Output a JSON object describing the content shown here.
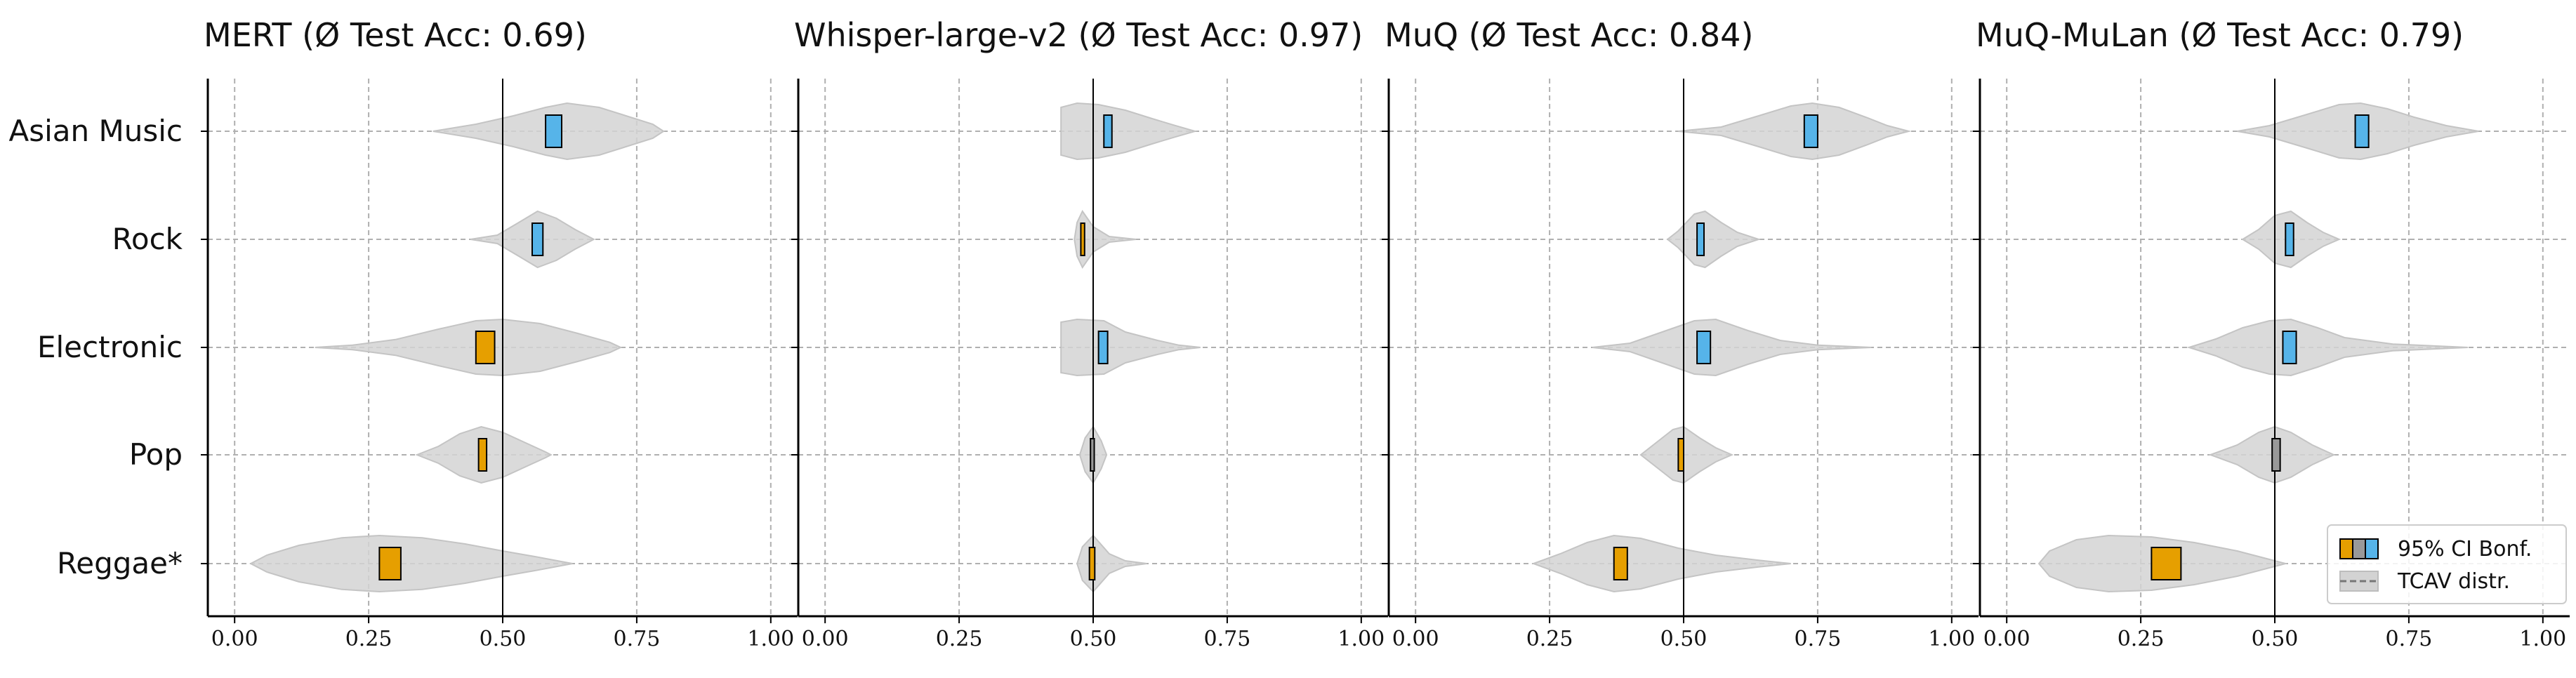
{
  "colors": {
    "negative": "#E69F00",
    "neutral": "#999999",
    "positive": "#56B4E9",
    "violin": "#d3d3d3",
    "grid": "#b0b0b0",
    "axis": "#000000"
  },
  "chart_data": {
    "type": "violin",
    "categories": [
      "Asian Music",
      "Rock",
      "Electronic",
      "Pop",
      "Reggae*"
    ],
    "xlim": [
      -0.05,
      1.05
    ],
    "xticks": [
      "0.00",
      "0.25",
      "0.50",
      "0.75",
      "1.00"
    ],
    "xtick_values": [
      0,
      0.25,
      0.5,
      0.75,
      1.0
    ],
    "reference_line": 0.5,
    "grid": true,
    "legend": {
      "placement": "bottom-right",
      "entries": [
        "95% CI Bonf.",
        "TCAV distr."
      ]
    },
    "panels": [
      {
        "title": "MERT (Ø Test Acc: 0.69)",
        "rows": [
          {
            "category": "Asian Music",
            "ci": [
              0.58,
              0.61
            ],
            "color": "positive",
            "violin": [
              [
                0.37,
                0.0
              ],
              [
                0.45,
                0.25
              ],
              [
                0.52,
                0.55
              ],
              [
                0.58,
                0.85
              ],
              [
                0.62,
                1.0
              ],
              [
                0.68,
                0.85
              ],
              [
                0.73,
                0.55
              ],
              [
                0.78,
                0.25
              ],
              [
                0.8,
                0.0
              ]
            ]
          },
          {
            "category": "Rock",
            "ci": [
              0.555,
              0.575
            ],
            "color": "positive",
            "violin": [
              [
                0.44,
                0.0
              ],
              [
                0.49,
                0.15
              ],
              [
                0.53,
                0.6
              ],
              [
                0.565,
                1.0
              ],
              [
                0.6,
                0.75
              ],
              [
                0.635,
                0.35
              ],
              [
                0.67,
                0.0
              ]
            ]
          },
          {
            "category": "Electronic",
            "ci": [
              0.45,
              0.485
            ],
            "color": "negative",
            "violin": [
              [
                0.15,
                0.0
              ],
              [
                0.22,
                0.08
              ],
              [
                0.3,
                0.28
              ],
              [
                0.38,
                0.65
              ],
              [
                0.45,
                0.95
              ],
              [
                0.5,
                1.0
              ],
              [
                0.57,
                0.85
              ],
              [
                0.64,
                0.5
              ],
              [
                0.7,
                0.18
              ],
              [
                0.72,
                0.0
              ]
            ]
          },
          {
            "category": "Pop",
            "ci": [
              0.455,
              0.47
            ],
            "color": "negative",
            "violin": [
              [
                0.34,
                0.0
              ],
              [
                0.38,
                0.3
              ],
              [
                0.42,
                0.75
              ],
              [
                0.46,
                1.0
              ],
              [
                0.5,
                0.8
              ],
              [
                0.54,
                0.45
              ],
              [
                0.58,
                0.1
              ],
              [
                0.59,
                0.0
              ]
            ]
          },
          {
            "category": "Reggae*",
            "ci": [
              0.27,
              0.31
            ],
            "color": "negative",
            "violin": [
              [
                0.03,
                0.0
              ],
              [
                0.06,
                0.3
              ],
              [
                0.12,
                0.65
              ],
              [
                0.2,
                0.92
              ],
              [
                0.27,
                1.0
              ],
              [
                0.35,
                0.92
              ],
              [
                0.43,
                0.7
              ],
              [
                0.5,
                0.45
              ],
              [
                0.56,
                0.25
              ],
              [
                0.63,
                0.0
              ]
            ]
          }
        ]
      },
      {
        "title": "Whisper-large-v2 (Ø Test Acc: 0.97)",
        "rows": [
          {
            "category": "Asian Music",
            "ci": [
              0.52,
              0.535
            ],
            "color": "positive",
            "violin": [
              [
                0.44,
                0.85
              ],
              [
                0.47,
                1.0
              ],
              [
                0.51,
                0.95
              ],
              [
                0.56,
                0.75
              ],
              [
                0.61,
                0.45
              ],
              [
                0.65,
                0.22
              ],
              [
                0.69,
                0.0
              ]
            ]
          },
          {
            "category": "Rock",
            "ci": [
              0.477,
              0.484
            ],
            "color": "negative",
            "violin": [
              [
                0.465,
                0.0
              ],
              [
                0.47,
                0.6
              ],
              [
                0.48,
                1.0
              ],
              [
                0.5,
                0.45
              ],
              [
                0.53,
                0.1
              ],
              [
                0.58,
                0.0
              ]
            ]
          },
          {
            "category": "Electronic",
            "ci": [
              0.51,
              0.527
            ],
            "color": "positive",
            "violin": [
              [
                0.44,
                0.9
              ],
              [
                0.47,
                1.0
              ],
              [
                0.52,
                0.95
              ],
              [
                0.56,
                0.55
              ],
              [
                0.62,
                0.25
              ],
              [
                0.66,
                0.08
              ],
              [
                0.7,
                0.0
              ]
            ]
          },
          {
            "category": "Pop",
            "ci": [
              0.495,
              0.502
            ],
            "color": "neutral",
            "violin": [
              [
                0.475,
                0.0
              ],
              [
                0.485,
                0.6
              ],
              [
                0.5,
                1.0
              ],
              [
                0.515,
                0.5
              ],
              [
                0.525,
                0.0
              ]
            ]
          },
          {
            "category": "Reggae*",
            "ci": [
              0.493,
              0.503
            ],
            "color": "negative",
            "violin": [
              [
                0.47,
                0.0
              ],
              [
                0.48,
                0.6
              ],
              [
                0.5,
                1.0
              ],
              [
                0.53,
                0.35
              ],
              [
                0.56,
                0.1
              ],
              [
                0.6,
                0.0
              ]
            ]
          }
        ]
      },
      {
        "title": "MuQ (Ø Test Acc: 0.84)",
        "rows": [
          {
            "category": "Asian Music",
            "ci": [
              0.725,
              0.75
            ],
            "color": "positive",
            "violin": [
              [
                0.49,
                0.0
              ],
              [
                0.57,
                0.15
              ],
              [
                0.64,
                0.55
              ],
              [
                0.7,
                0.9
              ],
              [
                0.74,
                1.0
              ],
              [
                0.79,
                0.85
              ],
              [
                0.84,
                0.5
              ],
              [
                0.88,
                0.2
              ],
              [
                0.92,
                0.0
              ]
            ]
          },
          {
            "category": "Rock",
            "ci": [
              0.525,
              0.538
            ],
            "color": "positive",
            "violin": [
              [
                0.47,
                0.0
              ],
              [
                0.49,
                0.3
              ],
              [
                0.52,
                0.9
              ],
              [
                0.54,
                1.0
              ],
              [
                0.57,
                0.6
              ],
              [
                0.6,
                0.25
              ],
              [
                0.64,
                0.0
              ]
            ]
          },
          {
            "category": "Electronic",
            "ci": [
              0.525,
              0.55
            ],
            "color": "positive",
            "violin": [
              [
                0.33,
                0.0
              ],
              [
                0.4,
                0.15
              ],
              [
                0.46,
                0.55
              ],
              [
                0.52,
                0.95
              ],
              [
                0.56,
                1.0
              ],
              [
                0.62,
                0.6
              ],
              [
                0.68,
                0.25
              ],
              [
                0.75,
                0.08
              ],
              [
                0.85,
                0.0
              ]
            ]
          },
          {
            "category": "Pop",
            "ci": [
              0.49,
              0.5
            ],
            "color": "negative",
            "violin": [
              [
                0.42,
                0.0
              ],
              [
                0.45,
                0.45
              ],
              [
                0.48,
                0.9
              ],
              [
                0.5,
                1.0
              ],
              [
                0.53,
                0.6
              ],
              [
                0.56,
                0.25
              ],
              [
                0.59,
                0.0
              ]
            ]
          },
          {
            "category": "Reggae*",
            "ci": [
              0.37,
              0.395
            ],
            "color": "negative",
            "violin": [
              [
                0.22,
                0.0
              ],
              [
                0.27,
                0.35
              ],
              [
                0.32,
                0.75
              ],
              [
                0.37,
                1.0
              ],
              [
                0.42,
                0.9
              ],
              [
                0.49,
                0.55
              ],
              [
                0.56,
                0.3
              ],
              [
                0.64,
                0.12
              ],
              [
                0.7,
                0.0
              ]
            ]
          }
        ]
      },
      {
        "title": "MuQ-MuLan (Ø Test Acc: 0.79)",
        "rows": [
          {
            "category": "Asian Music",
            "ci": [
              0.65,
              0.675
            ],
            "color": "positive",
            "violin": [
              [
                0.43,
                0.0
              ],
              [
                0.49,
                0.2
              ],
              [
                0.56,
                0.6
              ],
              [
                0.62,
                0.95
              ],
              [
                0.66,
                1.0
              ],
              [
                0.71,
                0.8
              ],
              [
                0.76,
                0.5
              ],
              [
                0.82,
                0.2
              ],
              [
                0.88,
                0.0
              ]
            ]
          },
          {
            "category": "Rock",
            "ci": [
              0.52,
              0.535
            ],
            "color": "positive",
            "violin": [
              [
                0.44,
                0.0
              ],
              [
                0.47,
                0.35
              ],
              [
                0.5,
                0.85
              ],
              [
                0.53,
                1.0
              ],
              [
                0.56,
                0.6
              ],
              [
                0.59,
                0.25
              ],
              [
                0.62,
                0.0
              ]
            ]
          },
          {
            "category": "Electronic",
            "ci": [
              0.515,
              0.54
            ],
            "color": "positive",
            "violin": [
              [
                0.34,
                0.0
              ],
              [
                0.39,
                0.3
              ],
              [
                0.44,
                0.7
              ],
              [
                0.49,
                0.95
              ],
              [
                0.53,
                1.0
              ],
              [
                0.58,
                0.7
              ],
              [
                0.63,
                0.35
              ],
              [
                0.72,
                0.12
              ],
              [
                0.86,
                0.0
              ]
            ]
          },
          {
            "category": "Pop",
            "ci": [
              0.495,
              0.51
            ],
            "color": "neutral",
            "violin": [
              [
                0.38,
                0.0
              ],
              [
                0.43,
                0.35
              ],
              [
                0.47,
                0.8
              ],
              [
                0.5,
                1.0
              ],
              [
                0.53,
                0.8
              ],
              [
                0.57,
                0.35
              ],
              [
                0.61,
                0.0
              ]
            ]
          },
          {
            "category": "Reggae*",
            "ci": [
              0.27,
              0.325
            ],
            "color": "negative",
            "violin": [
              [
                0.06,
                0.0
              ],
              [
                0.08,
                0.45
              ],
              [
                0.13,
                0.85
              ],
              [
                0.19,
                1.0
              ],
              [
                0.27,
                0.95
              ],
              [
                0.35,
                0.75
              ],
              [
                0.43,
                0.45
              ],
              [
                0.48,
                0.2
              ],
              [
                0.52,
                0.0
              ]
            ]
          }
        ]
      }
    ]
  }
}
